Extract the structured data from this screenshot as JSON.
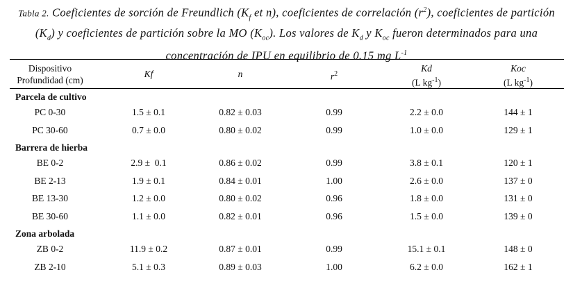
{
  "caption": {
    "parts": [
      "Tabla 2.",
      " Coeficientes de sorción de Freundlich (K",
      "f",
      " et n), coeficientes de correlación (r",
      "2",
      "), coeficientes de partición (K",
      "d",
      ") y coeficientes de partición sobre la MO (K",
      "oc",
      "). Los valores de K",
      "d",
      " y K",
      "oc",
      " fueron determinados para una concentración de IPU en equilibrio de 0.15 mg L",
      "-1"
    ]
  },
  "table": {
    "header": [
      [
        "Dispositivo",
        "Profundidad (cm)"
      ],
      [
        "Kf"
      ],
      [
        "n"
      ],
      [
        "r",
        "2"
      ],
      [
        "Kd",
        "(L kg",
        "-1",
        ")"
      ],
      [
        "Koc",
        "(L kg",
        "-1",
        ")"
      ]
    ],
    "groups": [
      {
        "name": "Parcela de cultivo",
        "rows": [
          [
            "PC 0-30",
            "1.5 ± 0.1",
            "0.82 ± 0.03",
            "0.99",
            "2.2 ± 0.0",
            "144 ± 1"
          ],
          [
            "PC 30-60",
            "0.7 ± 0.0",
            "0.80 ± 0.02",
            "0.99",
            "1.0 ± 0.0",
            "129 ± 1"
          ]
        ]
      },
      {
        "name": "Barrera de hierba",
        "rows": [
          [
            "BE 0-2",
            "2.9 ±  0.1",
            "0.86 ± 0.02",
            "0.99",
            "3.8 ± 0.1",
            "120 ± 1"
          ],
          [
            "BE 2-13",
            "1.9 ± 0.1",
            "0.84 ± 0.01",
            "1.00",
            "2.6 ± 0.0",
            "137 ± 0"
          ],
          [
            "BE 13-30",
            "1.2 ± 0.0",
            "0.80 ± 0.02",
            "0.96",
            "1.8 ± 0.0",
            "131 ± 0"
          ],
          [
            "BE 30-60",
            "1.1 ± 0.0",
            "0.82 ± 0.01",
            "0.96",
            "1.5 ± 0.0",
            "139 ± 0"
          ]
        ]
      },
      {
        "name": "Zona arbolada",
        "rows": [
          [
            "ZB 0-2",
            "11.9 ± 0.2",
            "0.87 ± 0.01",
            "0.99",
            "15.1 ± 0.1",
            "148 ± 0"
          ],
          [
            "ZB 2-10",
            "5.1 ± 0.3",
            "0.89 ± 0.03",
            "1.00",
            "6.2 ± 0.0",
            "162 ± 1"
          ]
        ]
      }
    ]
  }
}
